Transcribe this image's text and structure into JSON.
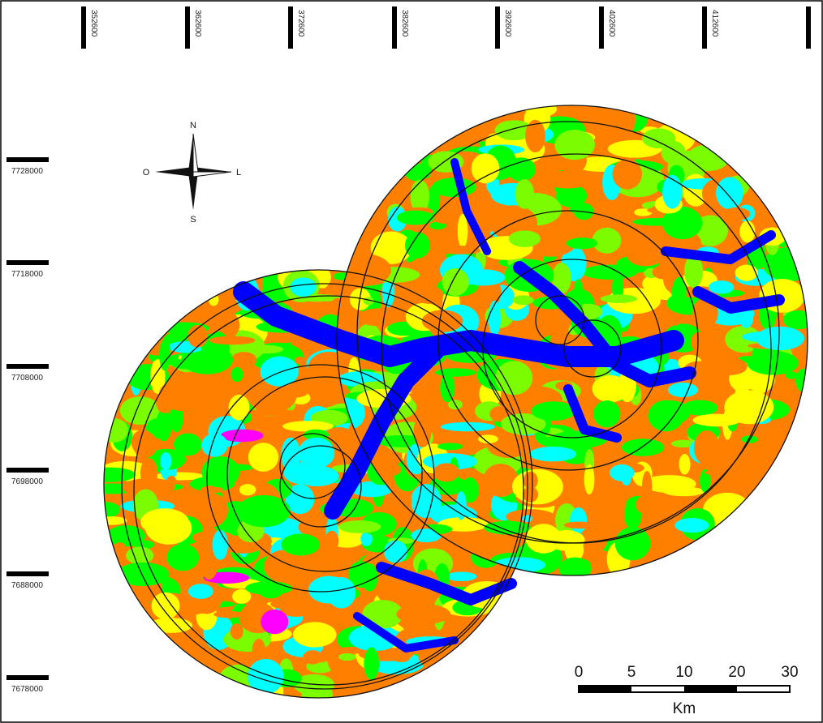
{
  "x_ticks": [
    "352600",
    "362600",
    "372600",
    "382600",
    "392600",
    "402600",
    "412600"
  ],
  "y_ticks": [
    "7728000",
    "7718000",
    "7708000",
    "7698000",
    "7688000",
    "7678000"
  ],
  "compass": {
    "north": "N",
    "south": "S",
    "west": "O",
    "east": "L"
  },
  "scale_bar": {
    "labels": [
      "0",
      "5",
      "10",
      "20",
      "30"
    ],
    "unit": "Km"
  }
}
